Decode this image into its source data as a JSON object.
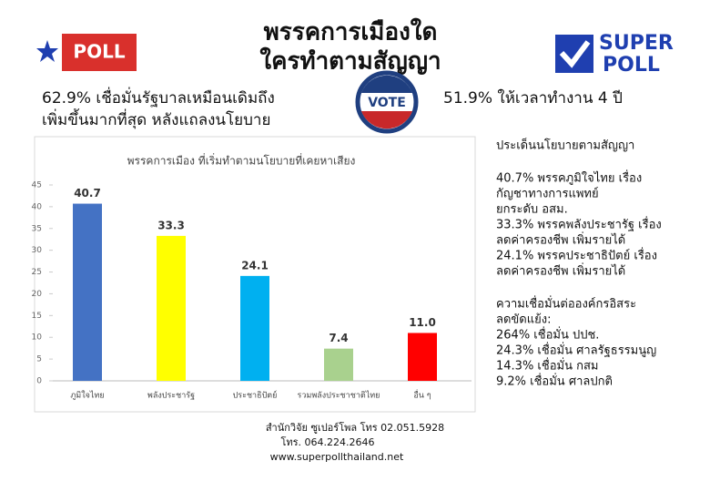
{
  "header": {
    "title_lines": [
      "พรรคการเมืองใด",
      "ใครทำตามสัญญา"
    ]
  },
  "logos": {
    "left": "POLL",
    "right_top": "SUPER",
    "right_bottom": "POLL"
  },
  "vote_badge": "VOTE",
  "left_stat": [
    "62.9% เชื่อมั่นรัฐบาลเหมือนเดิมถึง",
    "เพิ่มขึ้นมากที่สุด หลังแถลงนโยบาย"
  ],
  "right_stat": "51.9% ให้เวลาทำงาน 4 ปี",
  "side_notes": [
    "ประเด็นนโยบายตามสัญญา",
    "40.7% พรรคภูมิใจไทย เรื่อง",
    "กัญชาทางการแพทย์",
    "ยกระดับ อสม.",
    "33.3% พรรคพลังประชารัฐ เรื่อง",
    "ลดค่าครองชีพ เพิ่มรายได้",
    "24.1% พรรคประชาธิปัตย์ เรื่อง",
    "ลดค่าครองชีพ เพิ่มรายได้",
    "ความเชื่อมั่นต่อองค์กรอิสระ",
    "ลดขัดแย้ง:",
    "264% เชื่อมั่น ปปช.",
    "24.3% เชื่อมั่น ศาลรัฐธรรมนูญ",
    "14.3% เชื่อมั่น กสม",
    "9.2% เชื่อมั่น ศาลปกติ"
  ],
  "footer": [
    "สำนักวิจัย ซูเปอร์โพล โทร 02.051.5928",
    "โทร. 064.224.2646",
    "www.superpollthailand.net"
  ],
  "chart_data": {
    "type": "bar",
    "title": "พรรคการเมือง ที่เริ่มทำตามนโยบายที่เคยหาเสียง",
    "categories": [
      "ภูมิใจไทย",
      "พลังประชารัฐ",
      "ประชาธิปัตย์",
      "รวมพลังประชาชาติไทย",
      "อื่น ๆ"
    ],
    "values": [
      40.7,
      33.3,
      24.1,
      7.4,
      11
    ],
    "value_labels": [
      "40.7",
      "33.3",
      "24.1",
      "7.4",
      "11.0"
    ],
    "colors": [
      "#4472c4",
      "#ffff00",
      "#00b0f0",
      "#a9d18e",
      "#ff0000"
    ],
    "ylim": [
      0,
      45
    ],
    "yticks": [
      0,
      5,
      10,
      15,
      20,
      25,
      30,
      35,
      40,
      45
    ]
  }
}
